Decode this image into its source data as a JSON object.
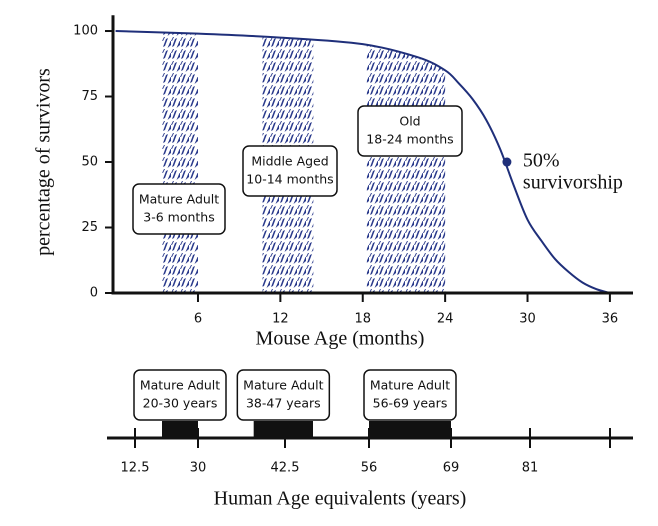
{
  "chart_data": {
    "type": "line",
    "ylabel": "percentage of survivors",
    "xlabel": "Mouse Age (months)",
    "xlim": [
      0,
      37.5
    ],
    "ylim": [
      0,
      106
    ],
    "xticks": [
      6,
      12,
      18,
      24,
      30,
      36
    ],
    "yticks": [
      0,
      25,
      50,
      75,
      100
    ],
    "series": [
      {
        "color": "#1f2f7a",
        "x": [
          0,
          6,
          12,
          18,
          22,
          24,
          25,
          26,
          27,
          28,
          29,
          30,
          31,
          32,
          33,
          34,
          35,
          36
        ],
        "values": [
          100,
          99,
          97.5,
          95,
          90,
          85,
          80,
          74,
          66,
          55,
          41,
          28,
          20,
          13,
          8,
          4,
          1.5,
          0
        ]
      }
    ],
    "bands": [
      {
        "range": [
          3.4,
          6
        ],
        "label": [
          "Mature Adult",
          "3-6 months"
        ]
      },
      {
        "range": [
          10.7,
          14.4
        ],
        "label": [
          "Middle Aged",
          "10-14 months"
        ]
      },
      {
        "range": [
          18.3,
          24
        ],
        "label": [
          "Old",
          "18-24 months"
        ]
      }
    ],
    "annotation": {
      "x": 28.5,
      "y": 50,
      "label": [
        "50%",
        "survivorship"
      ]
    }
  },
  "human_axis": {
    "label": "Human Age equivalents (years)",
    "ticks": [
      12.5,
      30,
      42.5,
      56,
      69,
      81
    ],
    "bands": [
      {
        "range": [
          20,
          30
        ],
        "label": [
          "Mature Adult",
          "20-30 years"
        ]
      },
      {
        "range": [
          38,
          47
        ],
        "label": [
          "Mature Adult",
          "38-47 years"
        ]
      },
      {
        "range": [
          56,
          69
        ],
        "label": [
          "Mature Adult",
          "56-69 years"
        ]
      }
    ]
  }
}
